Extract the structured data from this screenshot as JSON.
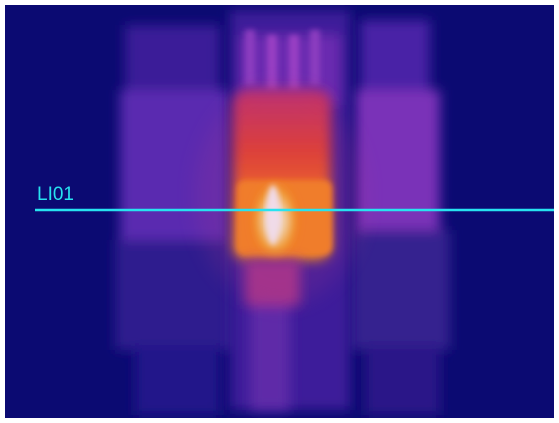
{
  "image": {
    "subject": "thermal-camera-image",
    "palette": "iron",
    "colors": {
      "background": "#0a0a6e",
      "cool": "#2a1a8c",
      "warm": "#b04bd0",
      "hot": "#ff6a1a",
      "hottest": "#fff8e0"
    }
  },
  "measurement_line": {
    "label": "LI01",
    "color": "#27e3f0"
  }
}
